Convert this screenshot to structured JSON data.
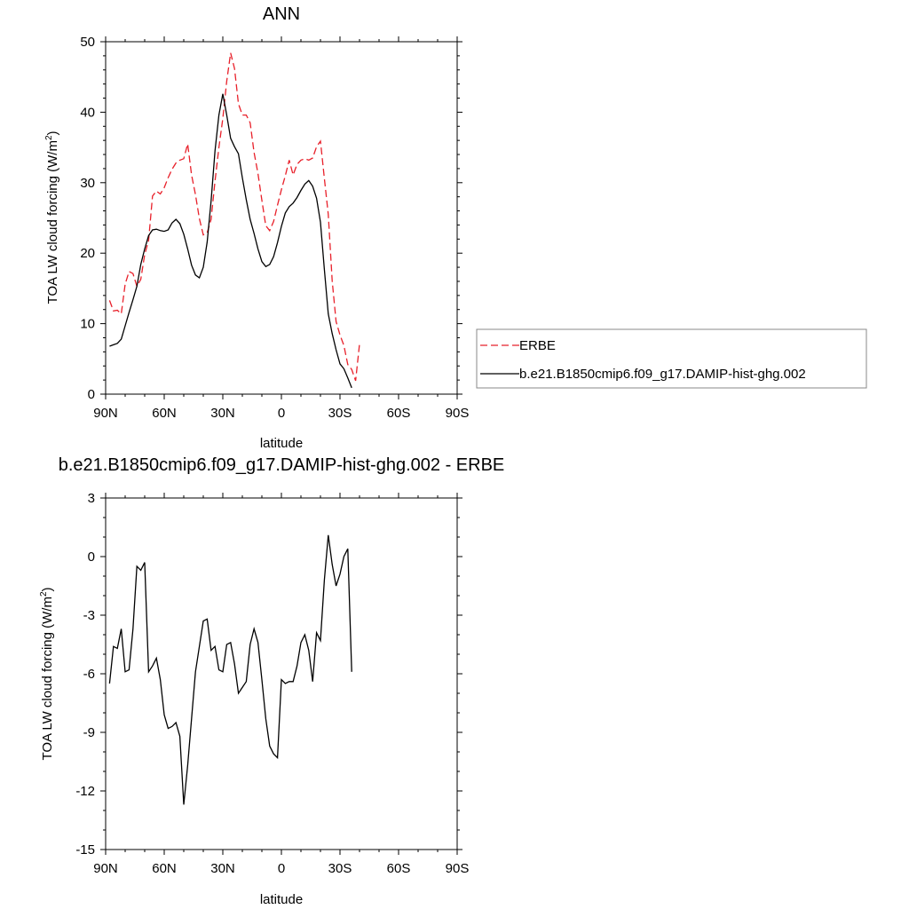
{
  "chart_data": [
    {
      "type": "line",
      "title": "ANN",
      "xlabel": "latitude",
      "ylabel": "TOA LW cloud forcing (W/m",
      "ylabel_sup": "2",
      "ylabel_close": ")",
      "xlim": [
        90,
        -90
      ],
      "ylim": [
        0,
        50
      ],
      "x_ticks": [
        90,
        60,
        30,
        0,
        -30,
        -60,
        -90
      ],
      "x_tick_labels": [
        "90N",
        "60N",
        "30N",
        "0",
        "30S",
        "60S",
        "90S"
      ],
      "y_ticks": [
        0,
        10,
        20,
        30,
        40,
        50
      ],
      "y_tick_labels": [
        "0",
        "10",
        "20",
        "30",
        "40",
        "50"
      ],
      "legend_position": "right",
      "series": [
        {
          "name": "ERBE",
          "color": "#e8202a",
          "dash": "dashed",
          "points": [
            [
              88,
              13.3
            ],
            [
              86,
              11.8
            ],
            [
              84,
              11.9
            ],
            [
              82,
              11.4
            ],
            [
              80,
              15.6
            ],
            [
              78,
              17.4
            ],
            [
              76,
              17.1
            ],
            [
              74,
              15.3
            ],
            [
              72,
              16.3
            ],
            [
              70,
              19.8
            ],
            [
              68,
              21.8
            ],
            [
              66,
              28.1
            ],
            [
              64,
              28.8
            ],
            [
              62,
              28.4
            ],
            [
              60,
              29.3
            ],
            [
              58,
              30.7
            ],
            [
              56,
              31.9
            ],
            [
              54,
              32.8
            ],
            [
              52,
              33.2
            ],
            [
              50,
              33.4
            ],
            [
              48,
              35.5
            ],
            [
              46,
              31.1
            ],
            [
              44,
              28.3
            ],
            [
              42,
              24.9
            ],
            [
              40,
              22.6
            ],
            [
              38,
              22.9
            ],
            [
              36,
              24.8
            ],
            [
              34,
              30.2
            ],
            [
              32,
              35.0
            ],
            [
              30,
              39.1
            ],
            [
              28,
              44.4
            ],
            [
              26,
              48.4
            ],
            [
              24,
              46.2
            ],
            [
              22,
              41.2
            ],
            [
              20,
              39.6
            ],
            [
              18,
              39.6
            ],
            [
              16,
              38.5
            ],
            [
              14,
              34.3
            ],
            [
              12,
              31.3
            ],
            [
              10,
              27.5
            ],
            [
              8,
              23.9
            ],
            [
              6,
              23.2
            ],
            [
              4,
              24.5
            ],
            [
              2,
              26.8
            ],
            [
              0,
              29.0
            ],
            [
              -2,
              31.0
            ],
            [
              -4,
              33.2
            ],
            [
              -6,
              31.1
            ],
            [
              -8,
              32.6
            ],
            [
              -10,
              33.2
            ],
            [
              -12,
              33.4
            ],
            [
              -14,
              33.2
            ],
            [
              -16,
              33.5
            ],
            [
              -18,
              35.1
            ],
            [
              -20,
              35.9
            ],
            [
              -22,
              30.6
            ],
            [
              -24,
              25.5
            ],
            [
              -26,
              16.1
            ],
            [
              -28,
              10.3
            ],
            [
              -30,
              8.4
            ],
            [
              -32,
              6.9
            ],
            [
              -34,
              4.2
            ],
            [
              -36,
              3.5
            ],
            [
              -38,
              1.9
            ],
            [
              -40,
              7.1
            ]
          ]
        },
        {
          "name": "b.e21.B1850cmip6.f09_g17.DAMIP-hist-ghg.002",
          "color": "#000000",
          "dash": "solid",
          "points": [
            [
              88,
              6.8
            ],
            [
              86,
              7.0
            ],
            [
              84,
              7.2
            ],
            [
              82,
              7.8
            ],
            [
              80,
              9.7
            ],
            [
              78,
              11.6
            ],
            [
              76,
              13.4
            ],
            [
              74,
              15.3
            ],
            [
              72,
              18.4
            ],
            [
              70,
              20.6
            ],
            [
              68,
              22.5
            ],
            [
              66,
              23.3
            ],
            [
              64,
              23.4
            ],
            [
              62,
              23.2
            ],
            [
              60,
              23.1
            ],
            [
              58,
              23.3
            ],
            [
              56,
              24.3
            ],
            [
              54,
              24.8
            ],
            [
              52,
              24.2
            ],
            [
              50,
              22.7
            ],
            [
              48,
              20.6
            ],
            [
              46,
              18.3
            ],
            [
              44,
              16.9
            ],
            [
              42,
              16.5
            ],
            [
              40,
              18.0
            ],
            [
              38,
              21.6
            ],
            [
              36,
              27.4
            ],
            [
              34,
              34.5
            ],
            [
              32,
              39.6
            ],
            [
              30,
              42.6
            ],
            [
              28,
              39.6
            ],
            [
              26,
              36.3
            ],
            [
              24,
              35.1
            ],
            [
              22,
              34.1
            ],
            [
              20,
              30.7
            ],
            [
              18,
              27.6
            ],
            [
              16,
              24.8
            ],
            [
              14,
              22.8
            ],
            [
              12,
              20.6
            ],
            [
              10,
              18.8
            ],
            [
              8,
              18.1
            ],
            [
              6,
              18.4
            ],
            [
              4,
              19.5
            ],
            [
              2,
              21.5
            ],
            [
              0,
              23.8
            ],
            [
              -2,
              25.7
            ],
            [
              -4,
              26.6
            ],
            [
              -6,
              27.1
            ],
            [
              -8,
              27.9
            ],
            [
              -10,
              28.9
            ],
            [
              -12,
              29.8
            ],
            [
              -14,
              30.3
            ],
            [
              -16,
              29.5
            ],
            [
              -18,
              27.8
            ],
            [
              -20,
              24.4
            ],
            [
              -22,
              17.7
            ],
            [
              -24,
              11.4
            ],
            [
              -26,
              8.6
            ],
            [
              -28,
              6.3
            ],
            [
              -30,
              4.3
            ],
            [
              -32,
              3.6
            ],
            [
              -34,
              2.3
            ],
            [
              -36,
              0.9
            ]
          ]
        }
      ]
    },
    {
      "type": "line",
      "title": "b.e21.B1850cmip6.f09_g17.DAMIP-hist-ghg.002 - ERBE",
      "xlabel": "latitude",
      "ylabel": "TOA LW cloud forcing (W/m",
      "ylabel_sup": "2",
      "ylabel_close": ")",
      "xlim": [
        90,
        -90
      ],
      "ylim": [
        -15,
        3
      ],
      "x_ticks": [
        90,
        60,
        30,
        0,
        -30,
        -60,
        -90
      ],
      "x_tick_labels": [
        "90N",
        "60N",
        "30N",
        "0",
        "30S",
        "60S",
        "90S"
      ],
      "y_ticks": [
        -15,
        -12,
        -9,
        -6,
        -3,
        0,
        3
      ],
      "y_tick_labels": [
        "-15",
        "-12",
        "-9",
        "-6",
        "-3",
        "0",
        "3"
      ],
      "series": [
        {
          "color": "#000000",
          "dash": "solid",
          "points": [
            [
              88,
              -6.5
            ],
            [
              86,
              -4.6
            ],
            [
              84,
              -4.7
            ],
            [
              82,
              -3.7
            ],
            [
              80,
              -5.9
            ],
            [
              78,
              -5.8
            ],
            [
              76,
              -3.7
            ],
            [
              74,
              -0.5
            ],
            [
              72,
              -0.7
            ],
            [
              70,
              -0.3
            ],
            [
              68,
              -5.9
            ],
            [
              66,
              -5.6
            ],
            [
              64,
              -5.2
            ],
            [
              62,
              -6.3
            ],
            [
              60,
              -8.1
            ],
            [
              58,
              -8.8
            ],
            [
              56,
              -8.7
            ],
            [
              54,
              -8.5
            ],
            [
              52,
              -9.2
            ],
            [
              50,
              -12.7
            ],
            [
              48,
              -10.7
            ],
            [
              46,
              -8.3
            ],
            [
              44,
              -5.9
            ],
            [
              42,
              -4.6
            ],
            [
              40,
              -3.3
            ],
            [
              38,
              -3.2
            ],
            [
              36,
              -4.8
            ],
            [
              34,
              -4.6
            ],
            [
              32,
              -5.8
            ],
            [
              30,
              -5.9
            ],
            [
              28,
              -4.5
            ],
            [
              26,
              -4.4
            ],
            [
              24,
              -5.5
            ],
            [
              22,
              -7.0
            ],
            [
              20,
              -6.7
            ],
            [
              18,
              -6.4
            ],
            [
              16,
              -4.5
            ],
            [
              14,
              -3.7
            ],
            [
              12,
              -4.4
            ],
            [
              10,
              -6.3
            ],
            [
              8,
              -8.3
            ],
            [
              6,
              -9.7
            ],
            [
              4,
              -10.1
            ],
            [
              2,
              -10.3
            ],
            [
              0,
              -6.3
            ],
            [
              -2,
              -6.5
            ],
            [
              -4,
              -6.4
            ],
            [
              -6,
              -6.4
            ],
            [
              -8,
              -5.6
            ],
            [
              -10,
              -4.4
            ],
            [
              -12,
              -4.0
            ],
            [
              -14,
              -4.8
            ],
            [
              -16,
              -6.4
            ],
            [
              -18,
              -3.9
            ],
            [
              -20,
              -4.3
            ],
            [
              -22,
              -1.2
            ],
            [
              -24,
              1.1
            ],
            [
              -26,
              -0.4
            ],
            [
              -28,
              -1.5
            ],
            [
              -30,
              -0.9
            ],
            [
              -32,
              0.0
            ],
            [
              -34,
              0.4
            ],
            [
              -36,
              -5.9
            ]
          ]
        }
      ]
    }
  ]
}
